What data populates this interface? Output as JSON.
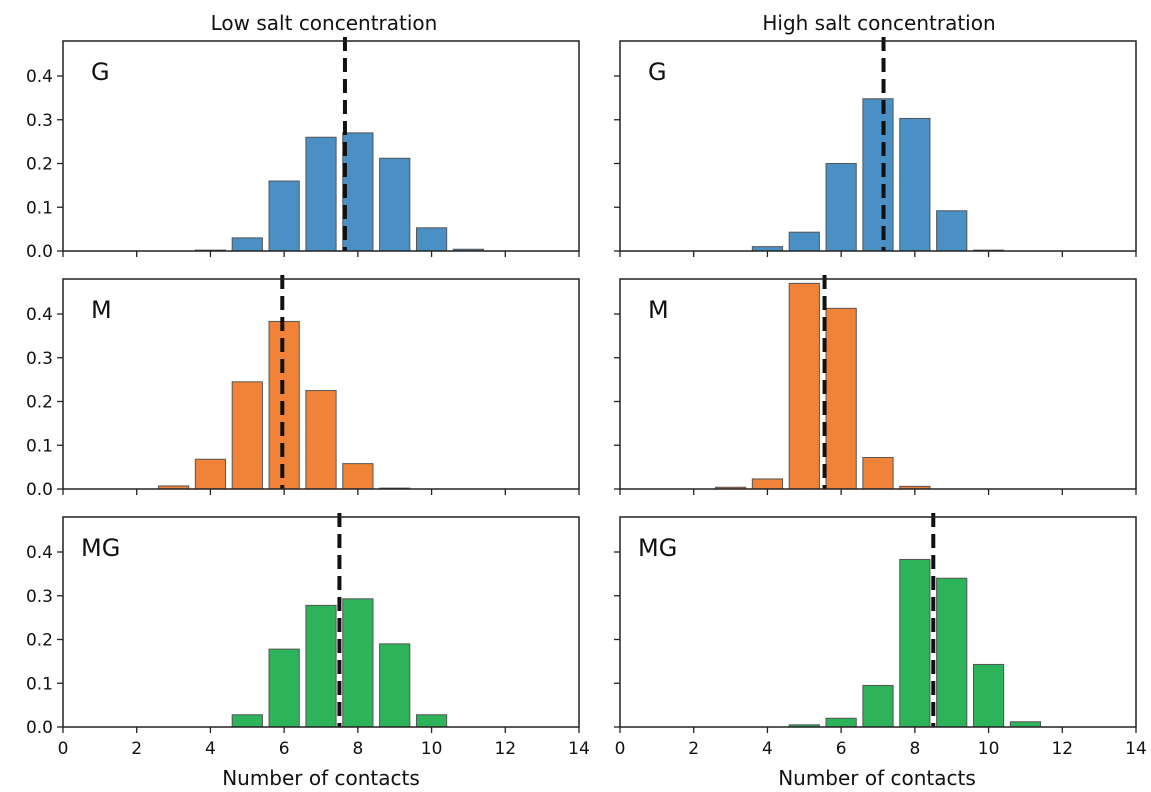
{
  "figure": {
    "column_titles": [
      "Low salt concentration",
      "High salt concentration"
    ],
    "xlabel": "Number of contacts",
    "colors": {
      "G": "#4a90c4",
      "M": "#f08338",
      "MG": "#2db35a"
    }
  },
  "chart_data": [
    {
      "type": "bar",
      "panel": "G",
      "column": "Low salt concentration",
      "x": [
        4,
        5,
        6,
        7,
        8,
        9,
        10,
        11
      ],
      "values": [
        0.002,
        0.03,
        0.16,
        0.26,
        0.27,
        0.212,
        0.053,
        0.004
      ],
      "mean": 7.65,
      "xlim": [
        0,
        14
      ],
      "ylim": [
        0,
        0.48
      ],
      "yticks": [
        0.0,
        0.1,
        0.2,
        0.3,
        0.4
      ]
    },
    {
      "type": "bar",
      "panel": "G",
      "column": "High salt concentration",
      "x": [
        4,
        5,
        6,
        7,
        8,
        9,
        10
      ],
      "values": [
        0.01,
        0.043,
        0.2,
        0.348,
        0.303,
        0.092,
        0.002
      ],
      "mean": 7.15,
      "xlim": [
        0,
        14
      ],
      "ylim": [
        0,
        0.48
      ],
      "yticks": [
        0.0,
        0.1,
        0.2,
        0.3,
        0.4
      ]
    },
    {
      "type": "bar",
      "panel": "M",
      "column": "Low salt concentration",
      "x": [
        3,
        4,
        5,
        6,
        7,
        8,
        9
      ],
      "values": [
        0.007,
        0.068,
        0.245,
        0.383,
        0.225,
        0.058,
        0.002
      ],
      "mean": 5.95,
      "xlim": [
        0,
        14
      ],
      "ylim": [
        0,
        0.48
      ],
      "yticks": [
        0.0,
        0.1,
        0.2,
        0.3,
        0.4
      ]
    },
    {
      "type": "bar",
      "panel": "M",
      "column": "High salt concentration",
      "x": [
        3,
        4,
        5,
        6,
        7,
        8
      ],
      "values": [
        0.004,
        0.023,
        0.47,
        0.413,
        0.072,
        0.006
      ],
      "mean": 5.55,
      "xlim": [
        0,
        14
      ],
      "ylim": [
        0,
        0.48
      ],
      "yticks": [
        0.0,
        0.1,
        0.2,
        0.3,
        0.4
      ]
    },
    {
      "type": "bar",
      "panel": "MG",
      "column": "Low salt concentration",
      "x": [
        5,
        6,
        7,
        8,
        9,
        10
      ],
      "values": [
        0.028,
        0.178,
        0.278,
        0.293,
        0.19,
        0.028
      ],
      "mean": 7.5,
      "xlim": [
        0,
        14
      ],
      "ylim": [
        0,
        0.48
      ],
      "yticks": [
        0.0,
        0.1,
        0.2,
        0.3,
        0.4
      ],
      "xticks": [
        0,
        2,
        4,
        6,
        8,
        10,
        12,
        14
      ]
    },
    {
      "type": "bar",
      "panel": "MG",
      "column": "High salt concentration",
      "x": [
        5,
        6,
        7,
        8,
        9,
        10,
        11
      ],
      "values": [
        0.005,
        0.02,
        0.095,
        0.383,
        0.34,
        0.143,
        0.012
      ],
      "mean": 8.5,
      "xlim": [
        0,
        14
      ],
      "ylim": [
        0,
        0.48
      ],
      "yticks": [
        0.0,
        0.1,
        0.2,
        0.3,
        0.4
      ],
      "xticks": [
        0,
        2,
        4,
        6,
        8,
        10,
        12,
        14
      ]
    }
  ]
}
